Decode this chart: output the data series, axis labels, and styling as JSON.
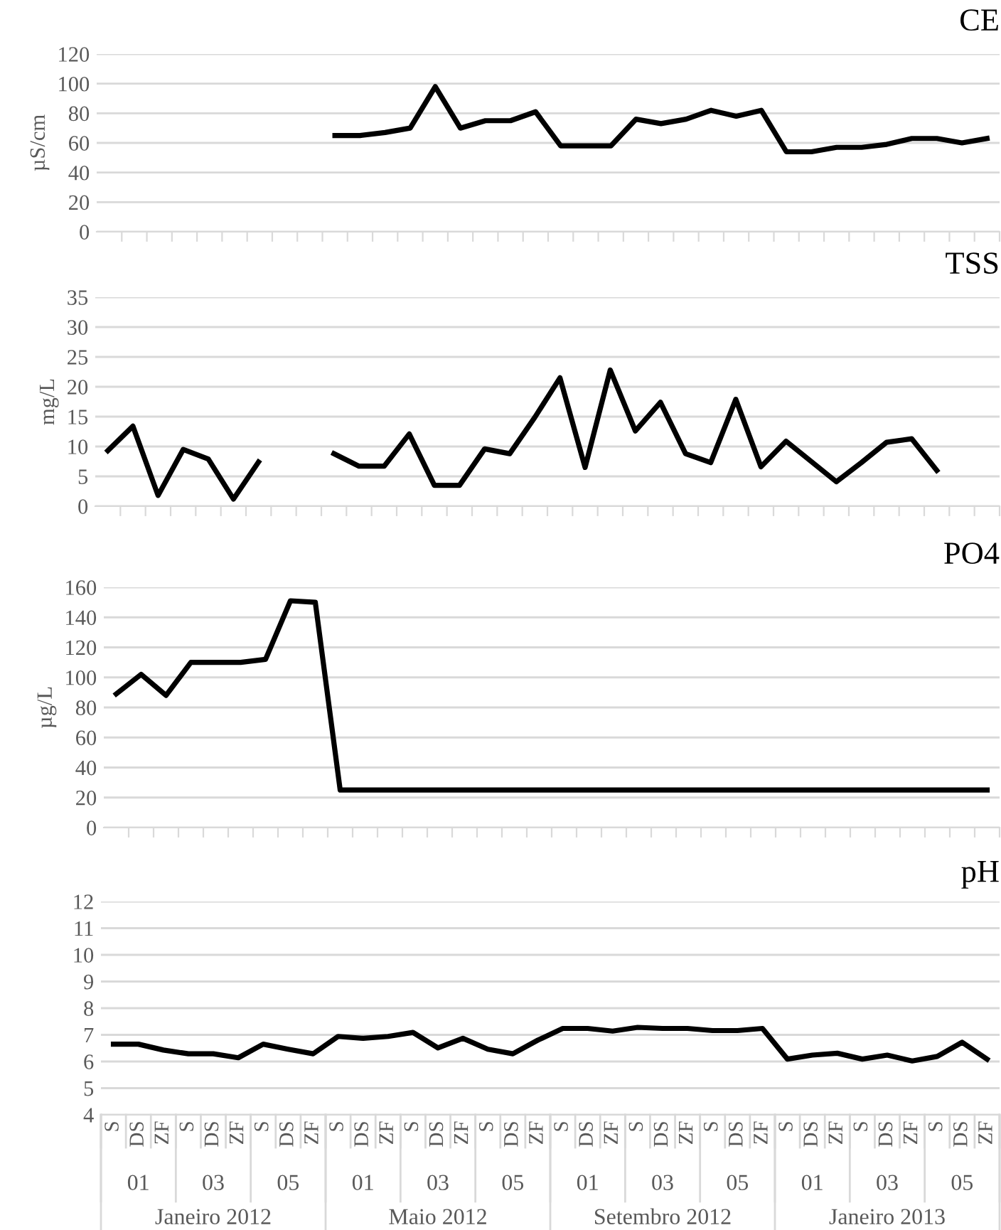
{
  "chart_data": [
    {
      "type": "line",
      "title": "CE",
      "ylabel": "µS/cm",
      "categories": [
        null,
        null,
        null,
        null,
        null,
        null,
        null,
        null,
        null,
        null,
        null,
        null,
        null,
        null,
        null,
        null,
        null,
        null,
        null,
        null,
        null,
        null,
        null,
        null,
        null,
        null,
        null,
        null,
        null,
        null,
        null,
        null,
        null,
        null,
        null,
        null
      ],
      "series": [
        {
          "color": "#000000",
          "values": [
            null,
            null,
            null,
            null,
            null,
            null,
            null,
            null,
            null,
            65,
            65,
            67,
            70,
            98,
            70,
            75,
            75,
            81,
            58,
            58,
            58,
            76,
            73,
            76,
            82,
            78,
            82,
            54,
            54,
            57,
            57,
            59,
            63,
            63,
            60,
            63
          ]
        }
      ],
      "ylim": [
        0,
        120
      ],
      "yticks": [
        0,
        20,
        40,
        60,
        80,
        100,
        120
      ],
      "grid": "y",
      "tick_labels": "y",
      "marker": "none",
      "line_style": "solid",
      "legend": false
    },
    {
      "type": "line",
      "title": "TSS",
      "ylabel": "mg/L",
      "categories": [
        null,
        null,
        null,
        null,
        null,
        null,
        null,
        null,
        null,
        null,
        null,
        null,
        null,
        null,
        null,
        null,
        null,
        null,
        null,
        null,
        null,
        null,
        null,
        null,
        null,
        null,
        null,
        null,
        null,
        null,
        null,
        null,
        null,
        null,
        null,
        null
      ],
      "series": [
        {
          "color": "#000000",
          "values": [
            9.3,
            13.4,
            1.8,
            9.5,
            7.9,
            1.2,
            7.4,
            null,
            null,
            8.8,
            6.7,
            6.7,
            12.1,
            3.5,
            3.5,
            9.6,
            8.8,
            14.9,
            21.5,
            6.5,
            22.8,
            12.6,
            17.4,
            8.8,
            7.3,
            17.9,
            6.6,
            10.9,
            7.5,
            4.1,
            7.3,
            10.7,
            11.3,
            6,
            null,
            null
          ]
        }
      ],
      "ylim": [
        0,
        35
      ],
      "yticks": [
        0,
        5,
        10,
        15,
        20,
        25,
        30,
        35
      ],
      "grid": "y",
      "tick_labels": "y",
      "marker": "none",
      "line_style": "solid",
      "legend": false
    },
    {
      "type": "line",
      "title": "PO4",
      "ylabel": "µg/L",
      "categories": [
        null,
        null,
        null,
        null,
        null,
        null,
        null,
        null,
        null,
        null,
        null,
        null,
        null,
        null,
        null,
        null,
        null,
        null,
        null,
        null,
        null,
        null,
        null,
        null,
        null,
        null,
        null,
        null,
        null,
        null,
        null,
        null,
        null,
        null,
        null,
        null
      ],
      "series": [
        {
          "color": "#000000",
          "values": [
            89,
            102,
            88,
            110,
            110,
            110,
            112,
            151,
            150,
            25,
            25,
            25,
            25,
            25,
            25,
            25,
            25,
            25,
            25,
            25,
            25,
            25,
            25,
            25,
            25,
            25,
            25,
            25,
            25,
            25,
            25,
            25,
            25,
            25,
            25,
            25
          ]
        }
      ],
      "ylim": [
        0,
        160
      ],
      "yticks": [
        0,
        20,
        40,
        60,
        80,
        100,
        120,
        140,
        160
      ],
      "grid": "y",
      "tick_labels": "y",
      "marker": "none",
      "line_style": "solid",
      "legend": false
    },
    {
      "type": "line",
      "title": "pH",
      "categories": [
        "S",
        "DS",
        "ZF",
        "S",
        "DS",
        "ZF",
        "S",
        "DS",
        "ZF",
        "S",
        "DS",
        "ZF",
        "S",
        "DS",
        "ZF",
        "S",
        "DS",
        "ZF",
        "S",
        "DS",
        "ZF",
        "S",
        "DS",
        "ZF",
        "S",
        "DS",
        "ZF",
        "S",
        "DS",
        "ZF",
        "S",
        "DS",
        "ZF",
        "S",
        "DS",
        "ZF"
      ],
      "series": [
        {
          "color": "#000000",
          "values": [
            6.65,
            6.65,
            6.43,
            6.29,
            6.29,
            6.14,
            6.65,
            6.46,
            6.29,
            6.94,
            6.87,
            6.94,
            7.09,
            6.51,
            6.87,
            6.46,
            6.29,
            6.8,
            7.24,
            7.24,
            7.14,
            7.28,
            7.24,
            7.24,
            7.16,
            7.16,
            7.24,
            6.09,
            6.24,
            6.31,
            6.09,
            6.24,
            6.02,
            6.19,
            6.72,
            6.09
          ]
        }
      ],
      "ylim": [
        4,
        12
      ],
      "yticks": [
        4,
        5,
        6,
        7,
        8,
        9,
        10,
        11,
        12
      ],
      "grid": "y",
      "marker": "none",
      "line_style": "solid",
      "legend": false,
      "annotations": [
        "01",
        "03",
        "05",
        "01",
        "03",
        "05",
        "01",
        "03",
        "05",
        "01",
        "03",
        "05",
        "Janeiro 2012",
        "Maio 2012",
        "Setembro 2012",
        "Janeiro 2013"
      ]
    }
  ]
}
